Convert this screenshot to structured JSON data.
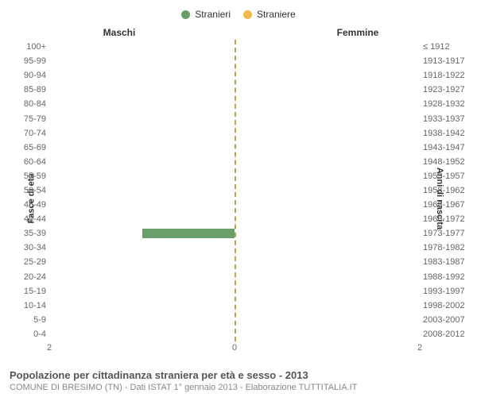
{
  "legend": {
    "male": {
      "label": "Stranieri",
      "color": "#6a9e6a"
    },
    "female": {
      "label": "Straniere",
      "color": "#f2b84b"
    }
  },
  "side_titles": {
    "left": "Maschi",
    "right": "Femmine"
  },
  "axis_titles": {
    "left": "Fasce di età",
    "right": "Anni di nascita"
  },
  "chart": {
    "type": "population-pyramid",
    "xmax": 2,
    "xticks": [
      2,
      0,
      2
    ],
    "center_line_color": "#b8a24a",
    "bar_male_color": "#6a9e6a",
    "bar_female_color": "#f2b84b",
    "background_color": "#ffffff",
    "rows": [
      {
        "age": "100+",
        "birth": "≤ 1912",
        "m": 0,
        "f": 0
      },
      {
        "age": "95-99",
        "birth": "1913-1917",
        "m": 0,
        "f": 0
      },
      {
        "age": "90-94",
        "birth": "1918-1922",
        "m": 0,
        "f": 0
      },
      {
        "age": "85-89",
        "birth": "1923-1927",
        "m": 0,
        "f": 0
      },
      {
        "age": "80-84",
        "birth": "1928-1932",
        "m": 0,
        "f": 0
      },
      {
        "age": "75-79",
        "birth": "1933-1937",
        "m": 0,
        "f": 0
      },
      {
        "age": "70-74",
        "birth": "1938-1942",
        "m": 0,
        "f": 0
      },
      {
        "age": "65-69",
        "birth": "1943-1947",
        "m": 0,
        "f": 0
      },
      {
        "age": "60-64",
        "birth": "1948-1952",
        "m": 0,
        "f": 0
      },
      {
        "age": "55-59",
        "birth": "1953-1957",
        "m": 0,
        "f": 0
      },
      {
        "age": "50-54",
        "birth": "1958-1962",
        "m": 0,
        "f": 0
      },
      {
        "age": "45-49",
        "birth": "1963-1967",
        "m": 0,
        "f": 0
      },
      {
        "age": "40-44",
        "birth": "1968-1972",
        "m": 0,
        "f": 0
      },
      {
        "age": "35-39",
        "birth": "1973-1977",
        "m": 1,
        "f": 0
      },
      {
        "age": "30-34",
        "birth": "1978-1982",
        "m": 0,
        "f": 0
      },
      {
        "age": "25-29",
        "birth": "1983-1987",
        "m": 0,
        "f": 0
      },
      {
        "age": "20-24",
        "birth": "1988-1992",
        "m": 0,
        "f": 0
      },
      {
        "age": "15-19",
        "birth": "1993-1997",
        "m": 0,
        "f": 0
      },
      {
        "age": "10-14",
        "birth": "1998-2002",
        "m": 0,
        "f": 0
      },
      {
        "age": "5-9",
        "birth": "2003-2007",
        "m": 0,
        "f": 0
      },
      {
        "age": "0-4",
        "birth": "2008-2012",
        "m": 0,
        "f": 0
      }
    ]
  },
  "caption": {
    "title": "Popolazione per cittadinanza straniera per età e sesso - 2013",
    "subtitle": "COMUNE DI BRESIMO (TN) - Dati ISTAT 1° gennaio 2013 - Elaborazione TUTTITALIA.IT"
  }
}
